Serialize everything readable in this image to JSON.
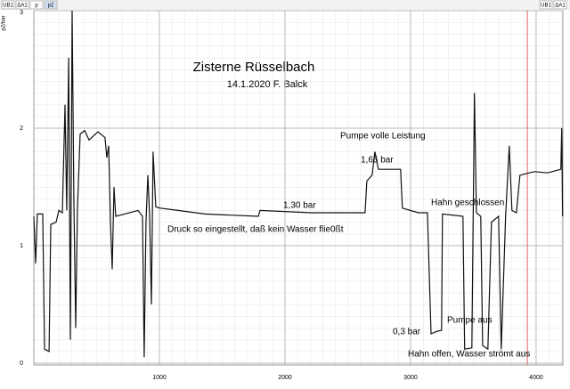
{
  "toolbar": {
    "left": [
      "UB1",
      "ΔA1",
      "p",
      "p2"
    ],
    "right": [
      "UB1",
      "ΔA1"
    ]
  },
  "chart_data": {
    "type": "line",
    "title": "Zisterne Rüsselbach",
    "subtitle": "14.1.2020 F. Balck",
    "ylabel": "p2/bar",
    "annotations": [
      "Pumpe volle Leistung",
      "1,65 bar",
      "1,30 bar",
      "Hahn geschlossen",
      "Druck so eingestellt, daß kein Wasser flie0ßt",
      "0,3 bar",
      "Pumpe aus",
      "Hahn offen, Wasser strömt aus"
    ],
    "color": "#111111",
    "cursor_x": 3930,
    "cursor_color": "#e06060",
    "xlim": [
      0,
      4213
    ],
    "ylim": [
      0,
      3
    ],
    "xticks": [
      1000,
      2000,
      3000,
      4000
    ],
    "yticks": [
      0,
      1,
      2,
      3
    ],
    "grid": true,
    "x": [
      0,
      14,
      28,
      71,
      85,
      121,
      135,
      177,
      199,
      227,
      248,
      262,
      277,
      291,
      305,
      319,
      333,
      347,
      369,
      404,
      440,
      511,
      567,
      581,
      596,
      610,
      624,
      638,
      652,
      723,
      830,
      865,
      879,
      893,
      908,
      922,
      936,
      950,
      971,
      1007,
      1149,
      1361,
      1574,
      1787,
      1801,
      2212,
      2354,
      2638,
      2652,
      2694,
      2716,
      2744,
      2921,
      2935,
      3063,
      3134,
      3163,
      3205,
      3247,
      3254,
      3417,
      3431,
      3488,
      3509,
      3524,
      3559,
      3574,
      3616,
      3644,
      3701,
      3722,
      3757,
      3786,
      3807,
      3843,
      3871,
      3985,
      4091,
      4197,
      4204,
      4211
    ],
    "values": [
      1.25,
      0.85,
      1.27,
      1.27,
      0.12,
      0.1,
      1.18,
      1.2,
      1.3,
      1.28,
      2.2,
      1.3,
      2.6,
      0.2,
      3.0,
      1.35,
      0.3,
      1.3,
      1.95,
      1.98,
      1.9,
      1.97,
      1.92,
      1.75,
      1.85,
      1.2,
      0.8,
      1.5,
      1.25,
      1.27,
      1.3,
      1.25,
      0.05,
      1.2,
      1.6,
      1.25,
      0.5,
      1.8,
      1.33,
      1.32,
      1.3,
      1.27,
      1.26,
      1.25,
      1.3,
      1.28,
      1.28,
      1.28,
      1.55,
      1.6,
      1.8,
      1.65,
      1.65,
      1.32,
      1.28,
      1.28,
      0.25,
      0.27,
      0.28,
      1.27,
      1.25,
      0.12,
      0.13,
      2.3,
      1.28,
      1.25,
      0.15,
      0.12,
      1.2,
      1.25,
      0.12,
      1.25,
      1.85,
      1.3,
      1.28,
      1.6,
      1.63,
      1.62,
      1.65,
      2.0,
      1.25
    ]
  }
}
